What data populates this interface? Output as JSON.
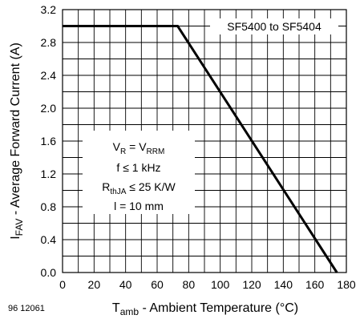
{
  "chart_data": {
    "type": "line",
    "series": [
      {
        "name": "SF5400 to SF5404",
        "x": [
          0,
          73,
          174
        ],
        "y": [
          3.0,
          3.0,
          0.0
        ]
      }
    ],
    "xlabel": {
      "main": "T",
      "sub": "amb",
      "rest": " - Ambient Temperature (°C)"
    },
    "ylabel": {
      "main": "I",
      "sub": "FAV",
      "rest": " - Average Forward Current (A)"
    },
    "xlim": [
      0,
      180
    ],
    "ylim": [
      0,
      3.2
    ],
    "x_ticks": [
      "0",
      "20",
      "40",
      "60",
      "80",
      "100",
      "120",
      "140",
      "160",
      "180"
    ],
    "y_ticks": [
      "0.0",
      "0.4",
      "0.8",
      "1.2",
      "1.6",
      "2.0",
      "2.4",
      "2.8",
      "3.2"
    ],
    "grid": true,
    "legend": "top-right",
    "annotations": {
      "line1_a": "V",
      "line1_a_sub": "R",
      "line1_b": " = V",
      "line1_b_sub": "RRM",
      "line2": "f ≤ 1 kHz",
      "line3_a": "R",
      "line3_a_sub": "thJA",
      "line3_b": " ≤ 25 K/W",
      "line4": "l = 10 mm"
    },
    "figure_id": "96 12061"
  }
}
